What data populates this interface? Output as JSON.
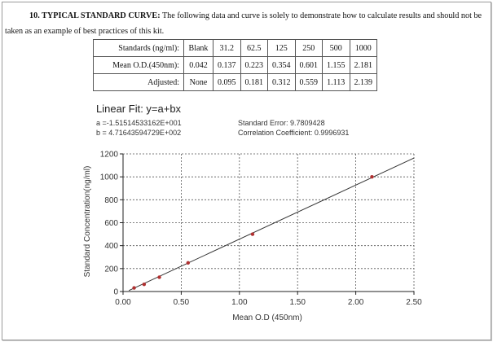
{
  "section": {
    "number": "10. TYPICAL STANDARD CURVE:",
    "text": " The following data and curve is solely to demonstrate how to calculate results and should not be taken as an example of best practices of this kit."
  },
  "table": {
    "rows": [
      {
        "label": "Standards (ng/ml):",
        "cells": [
          "Blank",
          "31.2",
          "62.5",
          "125",
          "250",
          "500",
          "1000"
        ]
      },
      {
        "label": "Mean O.D.(450nm):",
        "cells": [
          "0.042",
          "0.137",
          "0.223",
          "0.354",
          "0.601",
          "1.155",
          "2.181"
        ]
      },
      {
        "label": "Adjusted:",
        "cells": [
          "None",
          "0.095",
          "0.181",
          "0.312",
          "0.559",
          "1.113",
          "2.139"
        ]
      }
    ]
  },
  "fit": {
    "title": "Linear Fit: y=a+bx",
    "a": "a =-1.51514533162E+001",
    "b": "b = 4.71643594729E+002",
    "std_error": "Standard Error: 9.7809428",
    "corr": "Correlation Coefficient: 0.9996931"
  },
  "chart_data": {
    "type": "scatter",
    "xlabel": "Mean O.D (450nm)",
    "ylabel": "Standard Concentration(ng/ml)",
    "xlim": [
      0,
      2.5
    ],
    "ylim": [
      0,
      1200
    ],
    "xticks": [
      "0.00",
      "0.50",
      "1.00",
      "1.50",
      "2.00",
      "2.50"
    ],
    "yticks": [
      "0",
      "200",
      "400",
      "600",
      "800",
      "1000",
      "1200"
    ],
    "grid": true,
    "points": [
      {
        "x": 0.095,
        "y": 31.2
      },
      {
        "x": 0.181,
        "y": 62.5
      },
      {
        "x": 0.312,
        "y": 125
      },
      {
        "x": 0.559,
        "y": 250
      },
      {
        "x": 1.113,
        "y": 500
      },
      {
        "x": 2.139,
        "y": 1000
      }
    ],
    "fit_line": {
      "intercept": -15.1514533162,
      "slope": 471.643594729,
      "x_range": [
        0.05,
        2.5
      ]
    },
    "colors": {
      "point": "#b03030",
      "line": "#333333",
      "grid": "#555555"
    }
  }
}
